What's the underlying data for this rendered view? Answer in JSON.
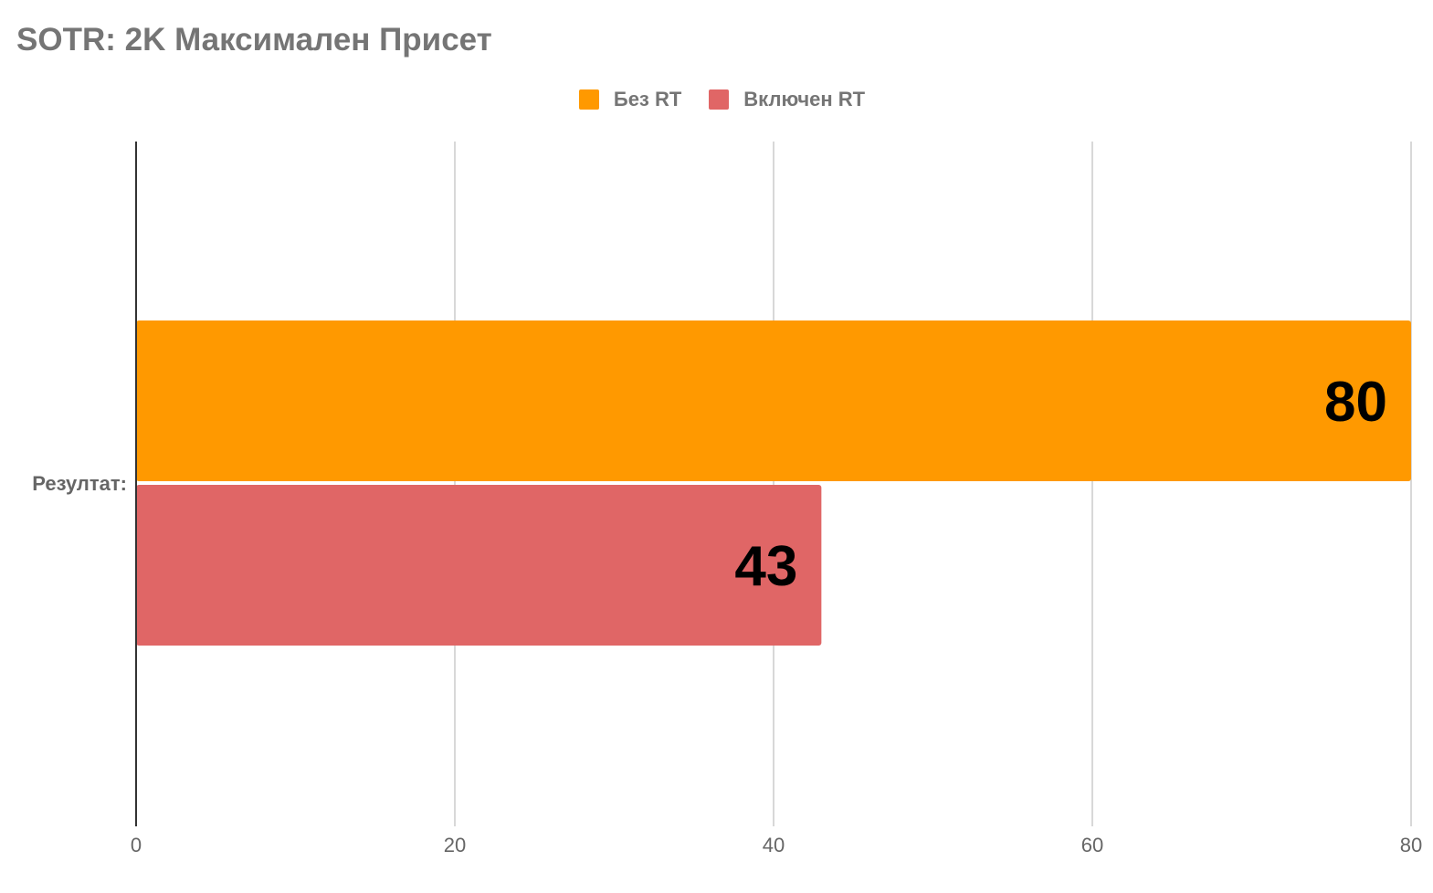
{
  "chart_data": {
    "type": "bar",
    "orientation": "horizontal",
    "title": "SOTR: 2K Максимален Присет",
    "categories": [
      "Резултат:"
    ],
    "series": [
      {
        "name": "Без RT",
        "values": [
          80
        ],
        "color": "#ff9900"
      },
      {
        "name": "Включен RT",
        "values": [
          43
        ],
        "color": "#e06666"
      }
    ],
    "xlim": [
      0,
      80
    ],
    "xticks": [
      "0",
      "20",
      "40",
      "60",
      "80"
    ],
    "data_labels": [
      "80",
      "43"
    ],
    "grid": true,
    "legend_position": "top-center",
    "xlabel": "",
    "ylabel": ""
  }
}
